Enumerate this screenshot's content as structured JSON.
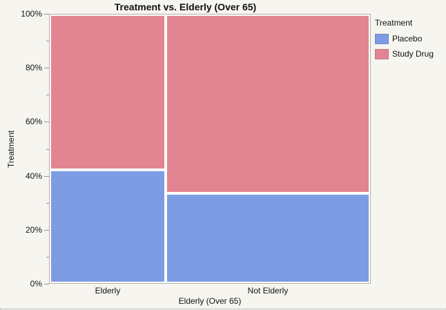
{
  "chart_data": {
    "type": "mosaic",
    "title": "Treatment vs. Elderly (Over 65)",
    "xlabel": "Elderly (Over 65)",
    "ylabel": "Treatment",
    "categories": [
      "Elderly",
      "Not Elderly"
    ],
    "category_width_pct": [
      36,
      64
    ],
    "series": [
      {
        "name": "Placebo",
        "color": "#7e9ce4",
        "stack_order": 0,
        "values_pct": [
          42,
          33
        ]
      },
      {
        "name": "Study Drug",
        "color": "#e28491",
        "stack_order": 1,
        "values_pct": [
          58,
          67
        ]
      }
    ],
    "y_axis": {
      "min": 0,
      "max": 100,
      "major_ticks": [
        {
          "value": 0,
          "label": "0%"
        },
        {
          "value": 20,
          "label": "20%"
        },
        {
          "value": 40,
          "label": "40%"
        },
        {
          "value": 60,
          "label": "60%"
        },
        {
          "value": 80,
          "label": "80%"
        },
        {
          "value": 100,
          "label": "100%"
        }
      ],
      "minor_ticks": [
        10,
        30,
        50,
        70,
        90
      ]
    },
    "legend_position": "right",
    "grid": false
  },
  "legend": {
    "title": "Treatment",
    "items": [
      {
        "label": "Placebo",
        "color": "#7e9ce4"
      },
      {
        "label": "Study Drug",
        "color": "#e28491"
      }
    ]
  },
  "colors": {
    "background": "#f6f5ef",
    "frame_border": "#b2b0aa",
    "tile_gap": "#fcfcfa",
    "tick": "#8f8f8f",
    "text": "#111111"
  }
}
